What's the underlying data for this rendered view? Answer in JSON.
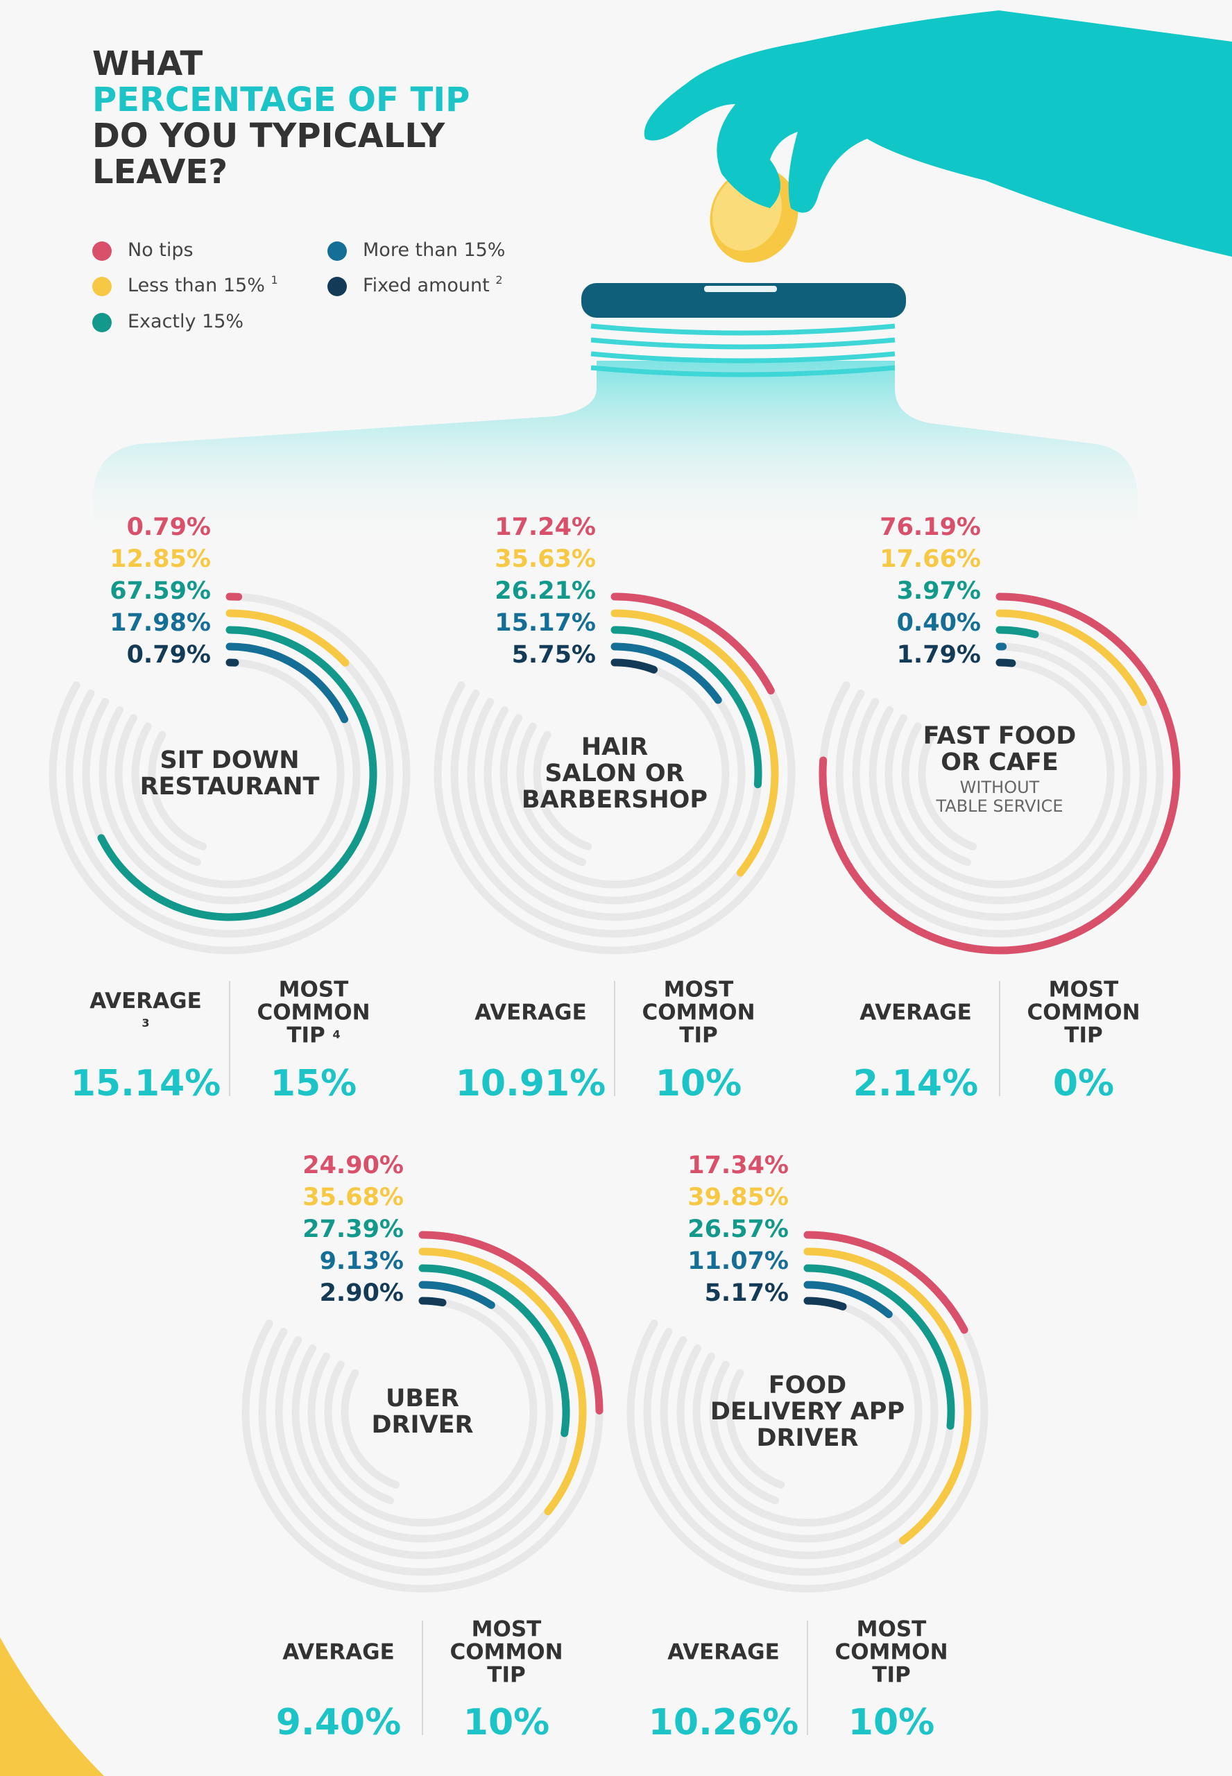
{
  "title": [
    "WHAT",
    "PERCENTAGE OF TIP",
    "DO YOU TYPICALLY",
    "LEAVE?"
  ],
  "legend": [
    {
      "name": "No tips",
      "color": "#d9506a"
    },
    {
      "name": "Less than 15%",
      "color": "#f7c843",
      "note": "1"
    },
    {
      "name": "Exactly 15%",
      "color": "#13998c"
    },
    {
      "name": "More than 15%",
      "color": "#146e96"
    },
    {
      "name": "Fixed amount",
      "color": "#133b58",
      "note": "2"
    }
  ],
  "chart_data": [
    {
      "type": "radial_bar",
      "title": [
        "SIT DOWN",
        "RESTAURANT"
      ],
      "ylim": [
        0,
        100
      ],
      "values": [
        0.79,
        12.85,
        67.59,
        17.98,
        0.79
      ],
      "value_labels": [
        "0.79%",
        "12.85%",
        "67.59%",
        "17.98%",
        "0.79%"
      ],
      "average_title": "AVERAGE",
      "average_note": "3",
      "average": 15.14,
      "average_label": "15.14%",
      "most_common_title": "MOST COMMON TIP",
      "most_common_note": "4",
      "most_common": 15,
      "most_common_label": "15%"
    },
    {
      "type": "radial_bar",
      "title": [
        "HAIR",
        "SALON OR",
        "BARBERSHOP"
      ],
      "ylim": [
        0,
        100
      ],
      "values": [
        17.24,
        35.63,
        26.21,
        15.17,
        5.75
      ],
      "value_labels": [
        "17.24%",
        "35.63%",
        "26.21%",
        "15.17%",
        "5.75%"
      ],
      "average_title": "AVERAGE",
      "average": 10.91,
      "average_label": "10.91%",
      "most_common_title": "MOST COMMON TIP",
      "most_common": 10,
      "most_common_label": "10%"
    },
    {
      "type": "radial_bar",
      "title": [
        "FAST FOOD",
        "OR CAFE"
      ],
      "subtitle": [
        "WITHOUT",
        "TABLE SERVICE"
      ],
      "ylim": [
        0,
        100
      ],
      "values": [
        76.19,
        17.66,
        3.97,
        0.4,
        1.79
      ],
      "value_labels": [
        "76.19%",
        "17.66%",
        "3.97%",
        "0.40%",
        "1.79%"
      ],
      "average_title": "AVERAGE",
      "average": 2.14,
      "average_label": "2.14%",
      "most_common_title": "MOST COMMON TIP",
      "most_common": 0,
      "most_common_label": "0%"
    },
    {
      "type": "radial_bar",
      "title": [
        "UBER",
        "DRIVER"
      ],
      "ylim": [
        0,
        100
      ],
      "values": [
        24.9,
        35.68,
        27.39,
        9.13,
        2.9
      ],
      "value_labels": [
        "24.90%",
        "35.68%",
        "27.39%",
        "9.13%",
        "2.90%"
      ],
      "average_title": "AVERAGE",
      "average": 9.4,
      "average_label": "9.40%",
      "most_common_title": "MOST COMMON TIP",
      "most_common": 10,
      "most_common_label": "10%"
    },
    {
      "type": "radial_bar",
      "title": [
        "FOOD",
        "DELIVERY APP",
        "DRIVER"
      ],
      "ylim": [
        0,
        100
      ],
      "values": [
        17.34,
        39.85,
        26.57,
        11.07,
        5.17
      ],
      "value_labels": [
        "17.34%",
        "39.85%",
        "26.57%",
        "11.07%",
        "5.17%"
      ],
      "average_title": "AVERAGE",
      "average": 10.26,
      "average_label": "10.26%",
      "most_common_title": "MOST COMMON TIP",
      "most_common": 10,
      "most_common_label": "10%"
    }
  ]
}
